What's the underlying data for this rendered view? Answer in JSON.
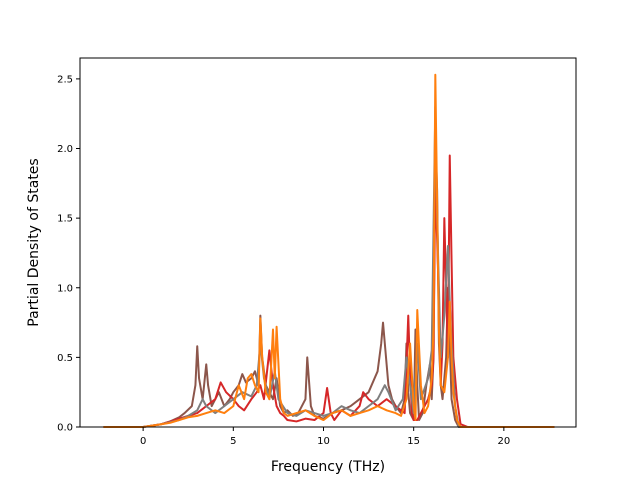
{
  "chart_data": {
    "type": "line",
    "title": "",
    "xlabel": "Frequency (THz)",
    "ylabel": "Partial Density of States",
    "xlim": [
      -3.5,
      24.0
    ],
    "ylim": [
      0,
      2.65
    ],
    "xticks": [
      0,
      5,
      10,
      15,
      20
    ],
    "xtick_labels": [
      "0",
      "5",
      "10",
      "15",
      "20"
    ],
    "yticks": [
      0.0,
      0.5,
      1.0,
      1.5,
      2.0,
      2.5
    ],
    "ytick_labels": [
      "0.0",
      "0.5",
      "1.0",
      "1.5",
      "2.0",
      "2.5"
    ],
    "grid": false,
    "legend": "none",
    "series": [
      {
        "color": "#8c564b",
        "x": [
          -2.2,
          0.0,
          0.5,
          1.0,
          1.5,
          2.0,
          2.3,
          2.7,
          2.9,
          3.0,
          3.1,
          3.3,
          3.5,
          3.6,
          3.8,
          4.0,
          4.2,
          4.5,
          4.8,
          5.0,
          5.3,
          5.5,
          5.7,
          6.0,
          6.2,
          6.4,
          6.5,
          6.6,
          6.8,
          7.0,
          7.2,
          7.4,
          7.6,
          7.8,
          8.0,
          8.3,
          8.6,
          9.0,
          9.1,
          9.3,
          9.5,
          10.0,
          10.5,
          11.0,
          11.5,
          12.0,
          12.5,
          13.0,
          13.2,
          13.3,
          13.4,
          13.6,
          13.8,
          14.0,
          14.3,
          14.5,
          14.6,
          14.7,
          14.8,
          15.0,
          15.1,
          15.2,
          15.3,
          15.5,
          15.7,
          15.9,
          16.0,
          16.1,
          16.2,
          16.3,
          16.4,
          16.5,
          16.6,
          16.8,
          16.9,
          17.0,
          17.1,
          17.3,
          17.5,
          18.0,
          22.8
        ],
        "y": [
          0.0,
          0.0,
          0.01,
          0.02,
          0.04,
          0.07,
          0.1,
          0.15,
          0.3,
          0.58,
          0.35,
          0.2,
          0.45,
          0.3,
          0.15,
          0.2,
          0.25,
          0.15,
          0.2,
          0.25,
          0.3,
          0.38,
          0.32,
          0.35,
          0.4,
          0.3,
          0.8,
          0.5,
          0.3,
          0.25,
          0.2,
          0.35,
          0.15,
          0.1,
          0.12,
          0.08,
          0.1,
          0.2,
          0.5,
          0.15,
          0.08,
          0.06,
          0.1,
          0.12,
          0.15,
          0.2,
          0.25,
          0.4,
          0.6,
          0.75,
          0.6,
          0.3,
          0.2,
          0.15,
          0.1,
          0.2,
          0.6,
          0.25,
          0.1,
          0.05,
          0.7,
          0.3,
          0.05,
          0.1,
          0.3,
          0.45,
          0.2,
          0.5,
          2.1,
          1.7,
          0.6,
          0.3,
          0.2,
          0.5,
          1.0,
          0.6,
          0.2,
          0.05,
          0.0,
          0.0,
          0.0
        ]
      },
      {
        "color": "#d62728",
        "x": [
          -2.2,
          0.0,
          0.5,
          1.0,
          1.5,
          2.0,
          2.5,
          3.0,
          3.5,
          4.0,
          4.3,
          4.6,
          5.0,
          5.3,
          5.6,
          6.0,
          6.3,
          6.5,
          6.7,
          7.0,
          7.2,
          7.4,
          7.6,
          7.8,
          8.0,
          8.5,
          9.0,
          9.5,
          10.0,
          10.2,
          10.4,
          10.6,
          11.0,
          11.5,
          12.0,
          12.2,
          12.5,
          13.0,
          13.5,
          14.0,
          14.5,
          14.7,
          14.8,
          14.9,
          15.0,
          15.2,
          15.4,
          15.6,
          15.8,
          16.0,
          16.1,
          16.2,
          16.4,
          16.5,
          16.6,
          16.7,
          16.8,
          16.9,
          17.0,
          17.1,
          17.2,
          17.4,
          17.6,
          18.0,
          22.8
        ],
        "y": [
          0.0,
          0.0,
          0.01,
          0.02,
          0.04,
          0.06,
          0.08,
          0.1,
          0.15,
          0.2,
          0.32,
          0.25,
          0.2,
          0.15,
          0.12,
          0.2,
          0.25,
          0.3,
          0.2,
          0.55,
          0.3,
          0.15,
          0.1,
          0.08,
          0.05,
          0.04,
          0.06,
          0.05,
          0.1,
          0.28,
          0.1,
          0.05,
          0.12,
          0.08,
          0.15,
          0.25,
          0.2,
          0.15,
          0.2,
          0.15,
          0.1,
          0.8,
          0.4,
          0.1,
          0.05,
          0.05,
          0.1,
          0.15,
          0.2,
          0.3,
          0.5,
          1.8,
          0.9,
          0.3,
          0.6,
          1.5,
          1.0,
          0.5,
          1.95,
          1.2,
          0.5,
          0.2,
          0.02,
          0.0,
          0.0
        ]
      },
      {
        "color": "#7f7f7f",
        "x": [
          -2.2,
          0.0,
          1.0,
          2.0,
          2.5,
          3.0,
          3.3,
          3.5,
          4.0,
          4.5,
          5.0,
          5.5,
          6.0,
          6.3,
          6.5,
          6.7,
          7.0,
          7.3,
          7.5,
          8.0,
          8.5,
          9.0,
          9.5,
          10.0,
          10.5,
          11.0,
          11.5,
          12.0,
          12.5,
          13.0,
          13.4,
          13.6,
          14.0,
          14.4,
          14.6,
          14.8,
          15.0,
          15.2,
          15.4,
          15.8,
          16.0,
          16.2,
          16.3,
          16.5,
          16.7,
          16.9,
          17.0,
          17.1,
          17.3,
          17.5,
          22.8
        ],
        "y": [
          0.0,
          0.0,
          0.02,
          0.05,
          0.08,
          0.12,
          0.2,
          0.15,
          0.1,
          0.15,
          0.2,
          0.25,
          0.22,
          0.3,
          0.6,
          0.35,
          0.2,
          0.4,
          0.2,
          0.1,
          0.08,
          0.12,
          0.1,
          0.08,
          0.1,
          0.15,
          0.12,
          0.1,
          0.15,
          0.2,
          0.3,
          0.25,
          0.12,
          0.2,
          0.5,
          0.3,
          0.1,
          0.6,
          0.2,
          0.35,
          0.55,
          2.3,
          1.5,
          0.5,
          0.8,
          1.3,
          0.9,
          0.6,
          0.15,
          0.0,
          0.0
        ]
      },
      {
        "color": "#ff7f0e",
        "x": [
          -2.2,
          0.0,
          0.5,
          1.0,
          1.5,
          2.0,
          2.5,
          3.0,
          3.5,
          4.0,
          4.5,
          5.0,
          5.3,
          5.6,
          5.8,
          6.0,
          6.2,
          6.4,
          6.5,
          6.6,
          6.8,
          7.0,
          7.2,
          7.3,
          7.4,
          7.6,
          7.8,
          8.0,
          8.5,
          9.0,
          9.5,
          10.0,
          10.5,
          11.0,
          11.5,
          12.0,
          12.5,
          13.0,
          13.5,
          14.0,
          14.3,
          14.6,
          14.8,
          15.0,
          15.1,
          15.2,
          15.4,
          15.6,
          15.8,
          16.0,
          16.1,
          16.2,
          16.3,
          16.4,
          16.5,
          16.7,
          16.9,
          17.0,
          17.1,
          17.2,
          17.4,
          17.6,
          22.8
        ],
        "y": [
          0.0,
          0.0,
          0.01,
          0.02,
          0.03,
          0.05,
          0.07,
          0.08,
          0.1,
          0.12,
          0.1,
          0.15,
          0.3,
          0.2,
          0.35,
          0.38,
          0.3,
          0.25,
          0.78,
          0.5,
          0.25,
          0.2,
          0.7,
          0.35,
          0.72,
          0.2,
          0.1,
          0.08,
          0.1,
          0.12,
          0.08,
          0.05,
          0.1,
          0.12,
          0.08,
          0.1,
          0.12,
          0.15,
          0.12,
          0.1,
          0.08,
          0.2,
          0.6,
          0.15,
          0.05,
          0.84,
          0.3,
          0.1,
          0.15,
          0.35,
          0.7,
          2.53,
          1.6,
          0.7,
          0.3,
          0.25,
          0.5,
          0.9,
          0.5,
          0.25,
          0.05,
          0.0,
          0.0
        ]
      }
    ]
  }
}
